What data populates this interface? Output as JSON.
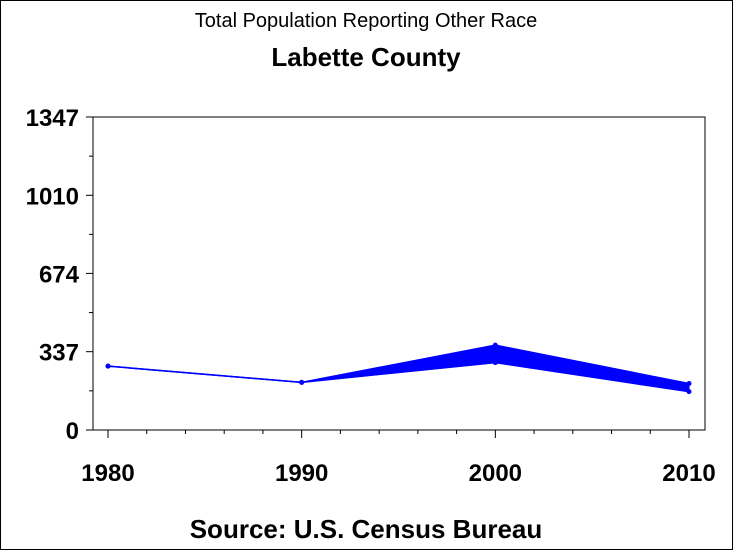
{
  "chart_data": {
    "type": "line",
    "title": "Total Population Reporting Other Race",
    "subtitle": "Labette County",
    "source": "Source: U.S. Census Bureau",
    "x": [
      "1980",
      "1990",
      "2000",
      "2010"
    ],
    "yticks": [
      0,
      337,
      674,
      1010,
      1347
    ],
    "ylim": [
      0,
      1347
    ],
    "series": [
      {
        "values": [
          275,
          205,
          290,
          165
        ]
      },
      {
        "values": [
          275,
          205,
          365,
          200
        ]
      }
    ],
    "band_between_series": true,
    "grid": false,
    "color": "#0000ff"
  }
}
